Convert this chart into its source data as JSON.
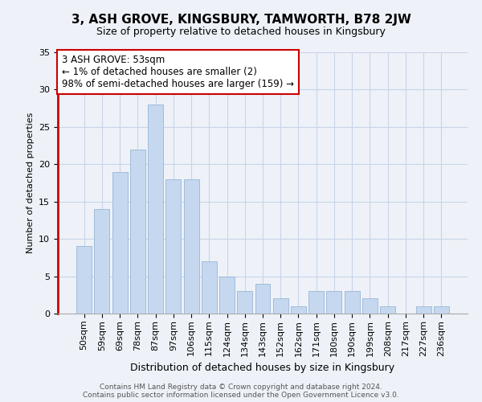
{
  "title": "3, ASH GROVE, KINGSBURY, TAMWORTH, B78 2JW",
  "subtitle": "Size of property relative to detached houses in Kingsbury",
  "xlabel": "Distribution of detached houses by size in Kingsbury",
  "ylabel": "Number of detached properties",
  "bar_labels": [
    "50sqm",
    "59sqm",
    "69sqm",
    "78sqm",
    "87sqm",
    "97sqm",
    "106sqm",
    "115sqm",
    "124sqm",
    "134sqm",
    "143sqm",
    "152sqm",
    "162sqm",
    "171sqm",
    "180sqm",
    "190sqm",
    "199sqm",
    "208sqm",
    "217sqm",
    "227sqm",
    "236sqm"
  ],
  "bar_values": [
    9,
    14,
    19,
    22,
    28,
    18,
    18,
    7,
    5,
    3,
    4,
    2,
    1,
    3,
    3,
    3,
    2,
    1,
    0,
    1,
    1
  ],
  "bar_color": "#c5d8f0",
  "bar_edgecolor": "#a0bcd8",
  "ylim": [
    0,
    35
  ],
  "yticks": [
    0,
    5,
    10,
    15,
    20,
    25,
    30,
    35
  ],
  "grid_color": "#c8d4e8",
  "background_color": "#eef2f8",
  "annotation_text": "3 ASH GROVE: 53sqm\n← 1% of detached houses are smaller (2)\n98% of semi-detached houses are larger (159) →",
  "annotation_box_edgecolor": "#cc0000",
  "red_spine_color": "#cc0000",
  "footer_line1": "Contains HM Land Registry data © Crown copyright and database right 2024.",
  "footer_line2": "Contains public sector information licensed under the Open Government Licence v3.0.",
  "title_fontsize": 11,
  "subtitle_fontsize": 9,
  "ylabel_fontsize": 8,
  "xlabel_fontsize": 9,
  "tick_fontsize": 8,
  "annotation_fontsize": 8.5,
  "footer_fontsize": 6.5
}
